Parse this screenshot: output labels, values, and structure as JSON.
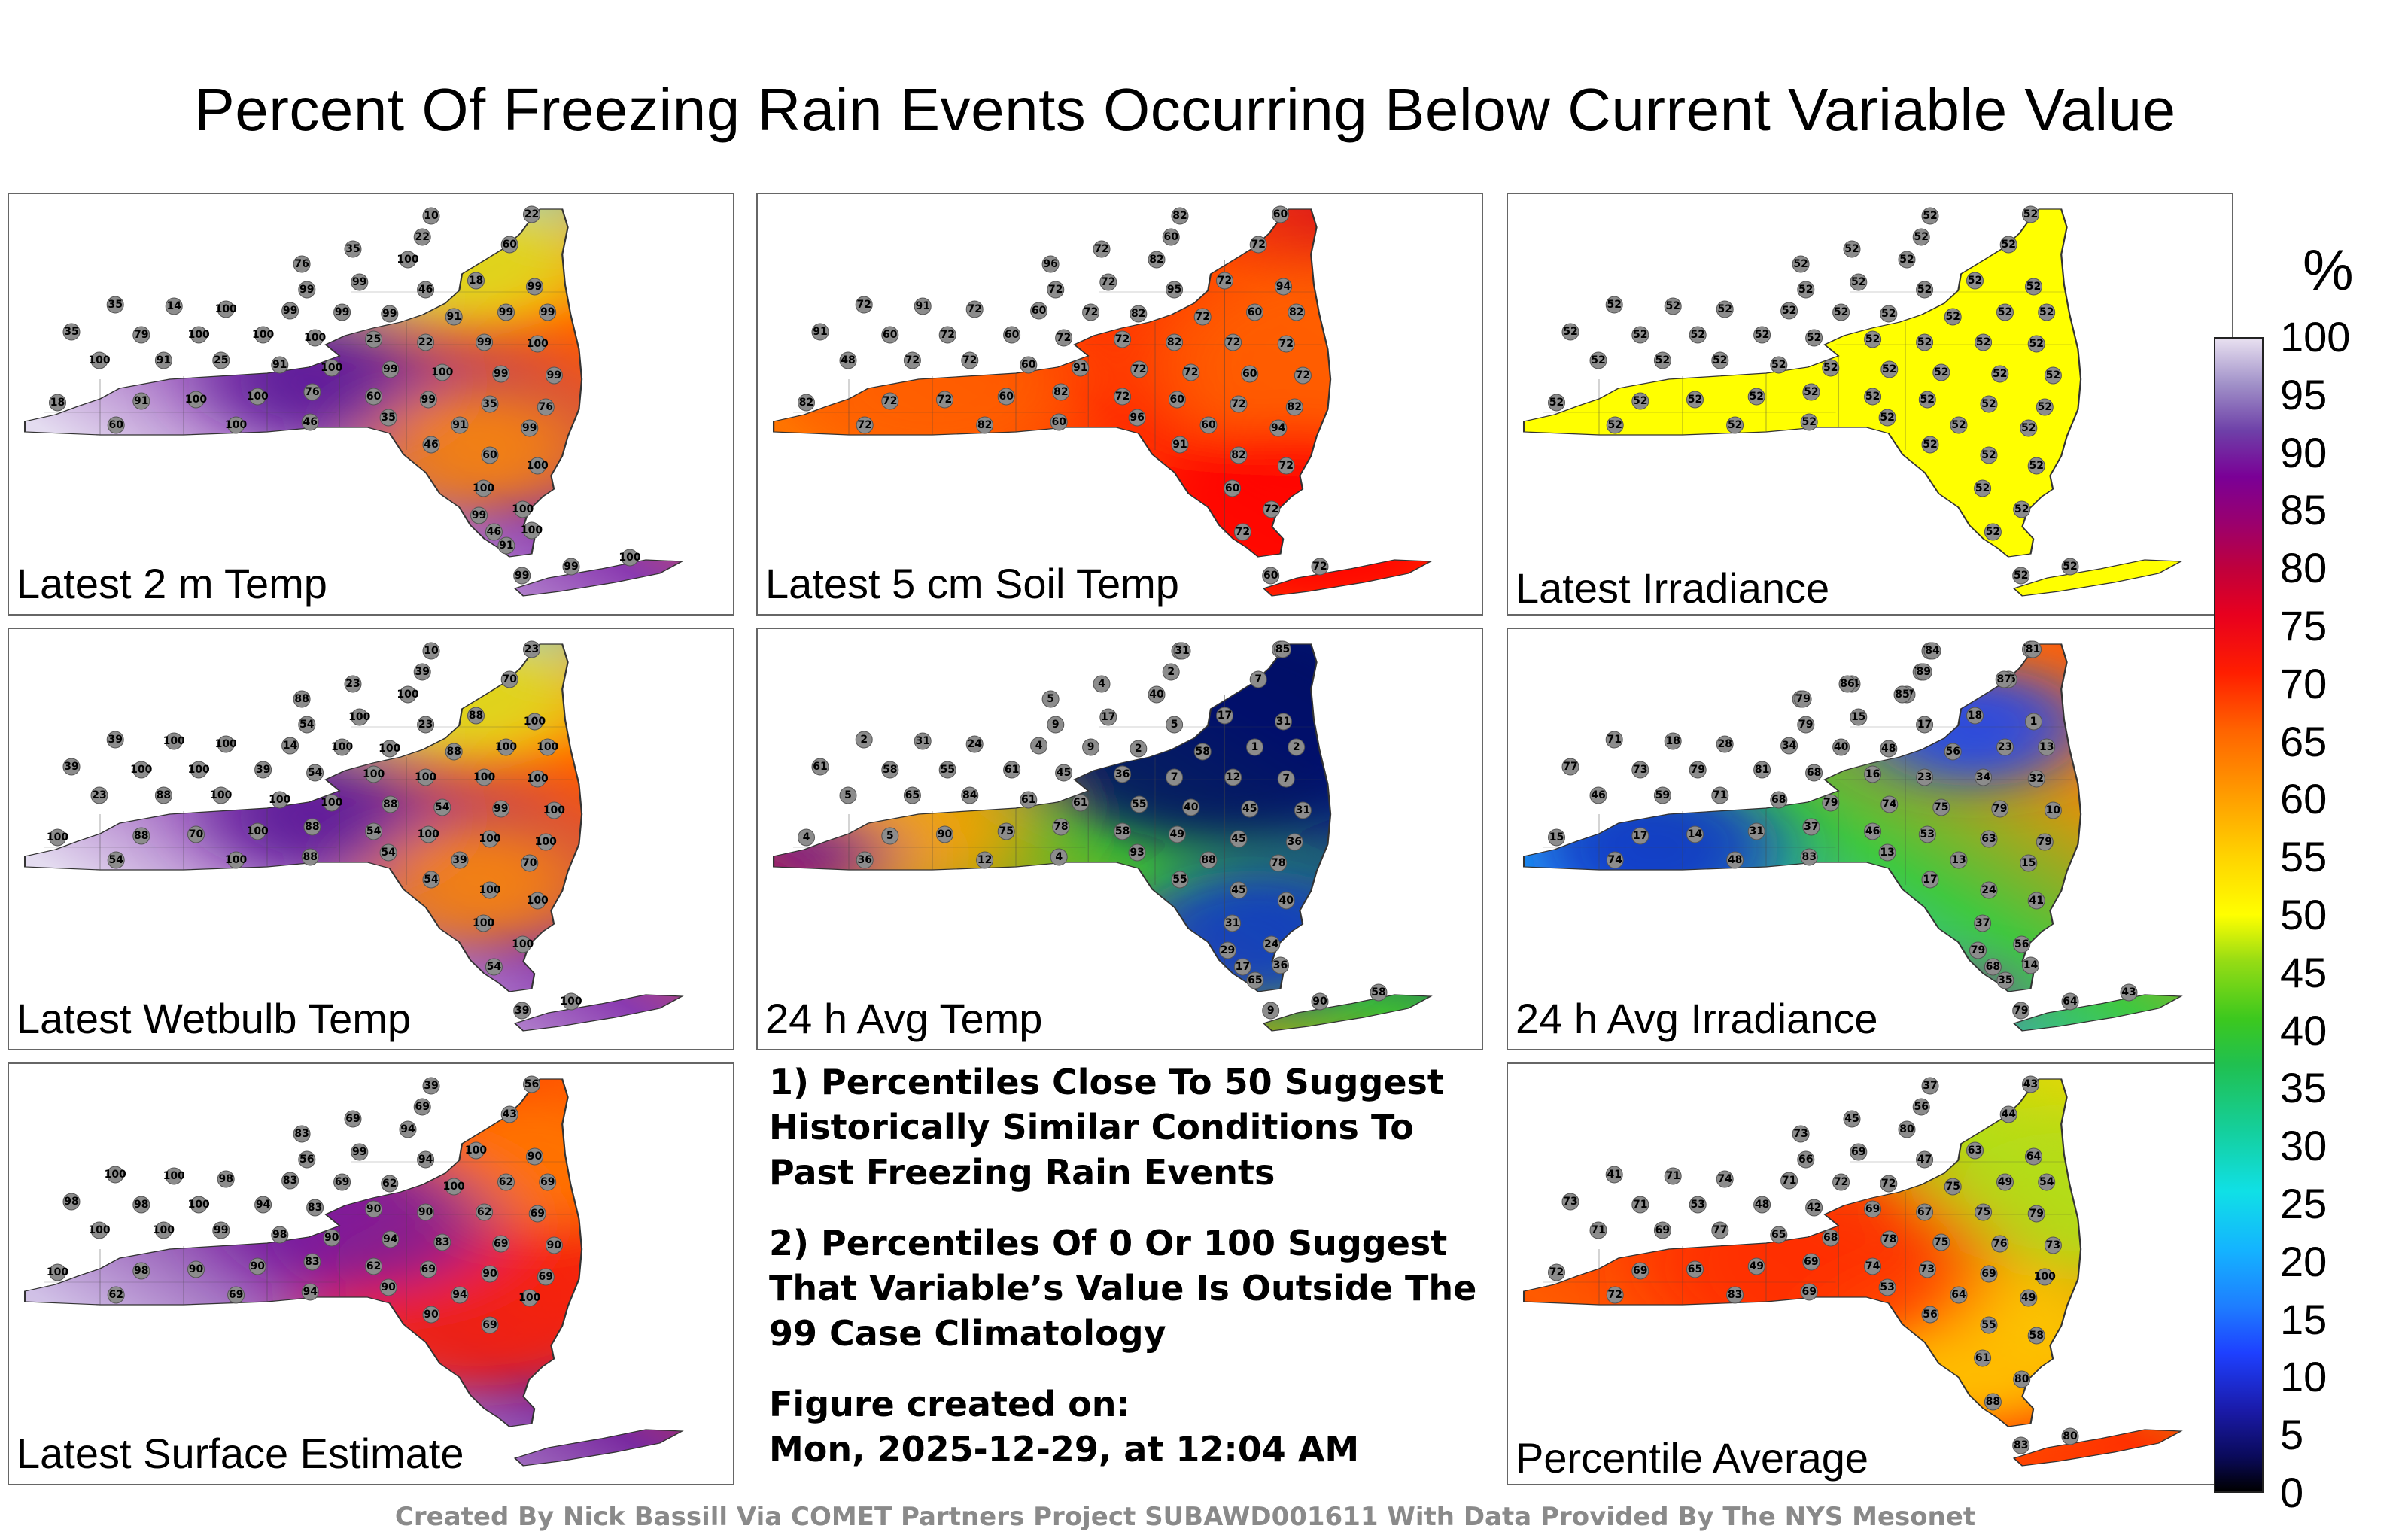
{
  "title": "Percent Of Freezing Rain Events Occurring Below Current Variable Value",
  "panels": [
    {
      "label": "Latest 2 m Temp",
      "field": "warm_north",
      "stations": [
        "10",
        "22",
        "60",
        "22",
        "35",
        "76",
        "100",
        "99",
        "99",
        "46",
        "18",
        "99",
        "99",
        "99",
        "35",
        "14",
        "100",
        "99",
        "99",
        "99",
        "91",
        "35",
        "79",
        "100",
        "100",
        "100",
        "25",
        "22",
        "99",
        "100",
        "100",
        "91",
        "25",
        "91",
        "100",
        "99",
        "100",
        "99",
        "99",
        "18",
        "91",
        "100",
        "100",
        "76",
        "60",
        "99",
        "35",
        "76",
        "60",
        "100",
        "46",
        "35",
        "91",
        "99",
        "46",
        "60",
        "100",
        "100",
        "100",
        "46",
        "99",
        "99",
        "100",
        "91",
        "100",
        "99"
      ]
    },
    {
      "label": "Latest 5 cm Soil Temp",
      "field": "red",
      "stations": [
        "82",
        "60",
        "72",
        "60",
        "72",
        "96",
        "82",
        "72",
        "72",
        "95",
        "72",
        "94",
        "82",
        "60",
        "72",
        "91",
        "72",
        "60",
        "72",
        "82",
        "72",
        "91",
        "60",
        "72",
        "60",
        "72",
        "72",
        "82",
        "72",
        "72",
        "48",
        "72",
        "72",
        "60",
        "91",
        "72",
        "72",
        "60",
        "72",
        "82",
        "72",
        "72",
        "60",
        "82",
        "72",
        "60",
        "72",
        "82",
        "72",
        "82",
        "60",
        "96",
        "60",
        "94",
        "91",
        "82",
        "72",
        "60",
        "72",
        "72",
        "60",
        "72"
      ]
    },
    {
      "label": "Latest Irradiance",
      "field": "yellow",
      "stations": [
        "52",
        "52",
        "52",
        "52",
        "52",
        "52",
        "52",
        "52",
        "52",
        "52",
        "52",
        "52",
        "52",
        "52",
        "52",
        "52",
        "52",
        "52",
        "52",
        "52",
        "52",
        "52",
        "52",
        "52",
        "52",
        "52",
        "52",
        "52",
        "52",
        "52",
        "52",
        "52",
        "52",
        "52",
        "52",
        "52",
        "52",
        "52",
        "52",
        "52",
        "52",
        "52",
        "52",
        "52",
        "52",
        "52",
        "52",
        "52",
        "52",
        "52",
        "52",
        "52",
        "52",
        "52",
        "52",
        "52",
        "52",
        "52",
        "52",
        "52",
        "52",
        "52"
      ]
    },
    {
      "label": "Latest Wetbulb Temp",
      "field": "warm_north",
      "stations": [
        "10",
        "23",
        "70",
        "39",
        "23",
        "88",
        "100",
        "100",
        "54",
        "23",
        "88",
        "100",
        "100",
        "100",
        "39",
        "100",
        "100",
        "14",
        "100",
        "100",
        "88",
        "39",
        "100",
        "100",
        "39",
        "54",
        "100",
        "100",
        "100",
        "100",
        "23",
        "88",
        "100",
        "100",
        "100",
        "88",
        "54",
        "99",
        "100",
        "100",
        "88",
        "70",
        "100",
        "88",
        "54",
        "100",
        "100",
        "100",
        "54",
        "100",
        "88",
        "54",
        "39",
        "70",
        "54",
        "100",
        "100",
        "100",
        "100",
        "54",
        "39",
        "100"
      ]
    },
    {
      "label": "24 h Avg Temp",
      "field": "blue",
      "stations": [
        "2",
        "4",
        "7",
        "2",
        "4",
        "5",
        "40",
        "17",
        "9",
        "5",
        "17",
        "31",
        "2",
        "1",
        "2",
        "31",
        "24",
        "4",
        "9",
        "2",
        "58",
        "61",
        "58",
        "55",
        "61",
        "45",
        "36",
        "7",
        "12",
        "7",
        "5",
        "65",
        "84",
        "61",
        "61",
        "55",
        "40",
        "45",
        "31",
        "4",
        "5",
        "90",
        "75",
        "78",
        "58",
        "49",
        "45",
        "36",
        "36",
        "12",
        "4",
        "93",
        "88",
        "78",
        "55",
        "45",
        "40",
        "31",
        "24",
        "17",
        "9",
        "90",
        "58",
        "65",
        "36",
        "29",
        "31",
        "85"
      ]
    },
    {
      "label": "24 h Avg Irradiance",
      "field": "green_west",
      "stations": [
        "79",
        "79",
        "85",
        "79",
        "64",
        "59",
        "77",
        "15",
        "79",
        "17",
        "18",
        "1",
        "13",
        "23",
        "71",
        "18",
        "28",
        "34",
        "40",
        "48",
        "56",
        "77",
        "73",
        "79",
        "81",
        "68",
        "16",
        "23",
        "34",
        "32",
        "46",
        "59",
        "71",
        "68",
        "79",
        "74",
        "75",
        "79",
        "10",
        "15",
        "17",
        "14",
        "31",
        "37",
        "46",
        "53",
        "63",
        "79",
        "74",
        "48",
        "83",
        "13",
        "13",
        "15",
        "17",
        "24",
        "41",
        "37",
        "56",
        "68",
        "79",
        "64",
        "43",
        "35",
        "14",
        "79",
        "84",
        "81",
        "87",
        "89",
        "86",
        "79",
        "85"
      ]
    },
    {
      "label": "Latest Surface Estimate",
      "field": "mix_purple",
      "stations": [
        "39",
        "56",
        "43",
        "69",
        "69",
        "83",
        "94",
        "99",
        "56",
        "94",
        "100",
        "90",
        "69",
        "62",
        "100",
        "100",
        "98",
        "83",
        "69",
        "62",
        "100",
        "98",
        "98",
        "100",
        "94",
        "83",
        "90",
        "90",
        "62",
        "69",
        "100",
        "100",
        "99",
        "98",
        "90",
        "94",
        "83",
        "69",
        "90",
        "100",
        "98",
        "90",
        "90",
        "83",
        "62",
        "69",
        "90",
        "69",
        "62",
        "69",
        "94",
        "90",
        "94",
        "100",
        "90",
        "69"
      ]
    },
    {
      "label": "Percentile Average",
      "field": "avg",
      "stations": [
        "37",
        "43",
        "44",
        "56",
        "45",
        "73",
        "80",
        "69",
        "66",
        "47",
        "63",
        "64",
        "54",
        "49",
        "41",
        "71",
        "74",
        "71",
        "72",
        "72",
        "75",
        "73",
        "71",
        "53",
        "48",
        "42",
        "69",
        "67",
        "75",
        "79",
        "71",
        "69",
        "77",
        "65",
        "68",
        "78",
        "75",
        "76",
        "73",
        "72",
        "69",
        "65",
        "49",
        "69",
        "74",
        "73",
        "69",
        "100",
        "72",
        "83",
        "69",
        "53",
        "64",
        "49",
        "56",
        "55",
        "58",
        "61",
        "80",
        "88",
        "83",
        "80"
      ]
    }
  ],
  "notes": {
    "note1": "1) Percentiles Close To 50 Suggest Historically Similar Conditions To Past Freezing Rain Events",
    "note2": "2) Percentiles Of 0 Or 100 Suggest That Variable’s Value Is Outside The 99 Case Climatology",
    "created_label": "Figure created on:",
    "created_date": "Mon, 2025-12-29, at 12:04 AM"
  },
  "colorbar": {
    "title": "%",
    "ticks": [
      "100",
      "95",
      "90",
      "85",
      "80",
      "75",
      "70",
      "65",
      "60",
      "55",
      "50",
      "45",
      "40",
      "35",
      "30",
      "25",
      "20",
      "15",
      "10",
      "5",
      "0"
    ]
  },
  "credit": "Created By Nick Bassill Via COMET Partners Project SUBAWD001611 With Data Provided By The NYS Mesonet"
}
